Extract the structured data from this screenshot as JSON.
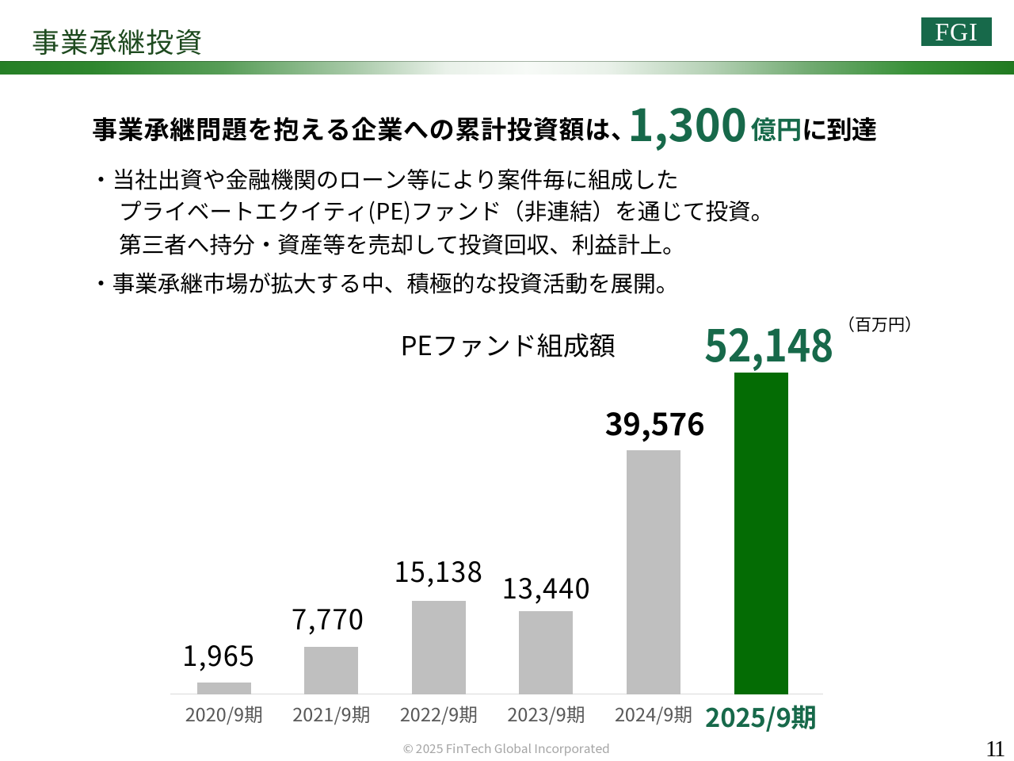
{
  "slide": {
    "title": "事業承継投資",
    "logo_text": "FGI",
    "headline": {
      "prefix": "事業承継問題を抱える企業への累計投資額は、",
      "big_number": "1,300",
      "unit": "億円",
      "suffix": "に到達"
    },
    "bullet_lines": [
      "・当社出資や金融機関のローン等により案件毎に組成した",
      "プライベートエクイティ(PE)ファンド（非連結）を通じて投資。",
      "第三者へ持分・資産等を売却して投資回収、利益計上。",
      "・事業承継市場が拡大する中、積極的な投資活動を展開。"
    ],
    "footer": {
      "copyright": "© 2025 FinTech Global Incorporated",
      "page_number": "11"
    },
    "colors": {
      "title_green": "#1e4a1f",
      "accent_green": "#17694a",
      "bar_gray": "#bfbfbf",
      "bar_green": "#046c04",
      "axis_gray": "#d9d9d9",
      "xlabel_gray": "#595959",
      "footer_gray": "#a6a6a6"
    }
  },
  "chart_data": {
    "type": "bar",
    "title": "PEファンド組成額",
    "unit_label": "（百万円）",
    "categories": [
      "2020/9期",
      "2021/9期",
      "2022/9期",
      "2023/9期",
      "2024/9期",
      "2025/9期"
    ],
    "values": [
      1965,
      7770,
      15138,
      13440,
      39576,
      52148
    ],
    "value_labels": [
      "1,965",
      "7,770",
      "15,138",
      "13,440",
      "39,576",
      "52,148"
    ],
    "highlight_index": 5,
    "bold_value_indexes": [
      4,
      5
    ],
    "xlabel": "",
    "ylabel": "",
    "ylim": [
      0,
      52148
    ],
    "grid": false,
    "legend": false
  }
}
